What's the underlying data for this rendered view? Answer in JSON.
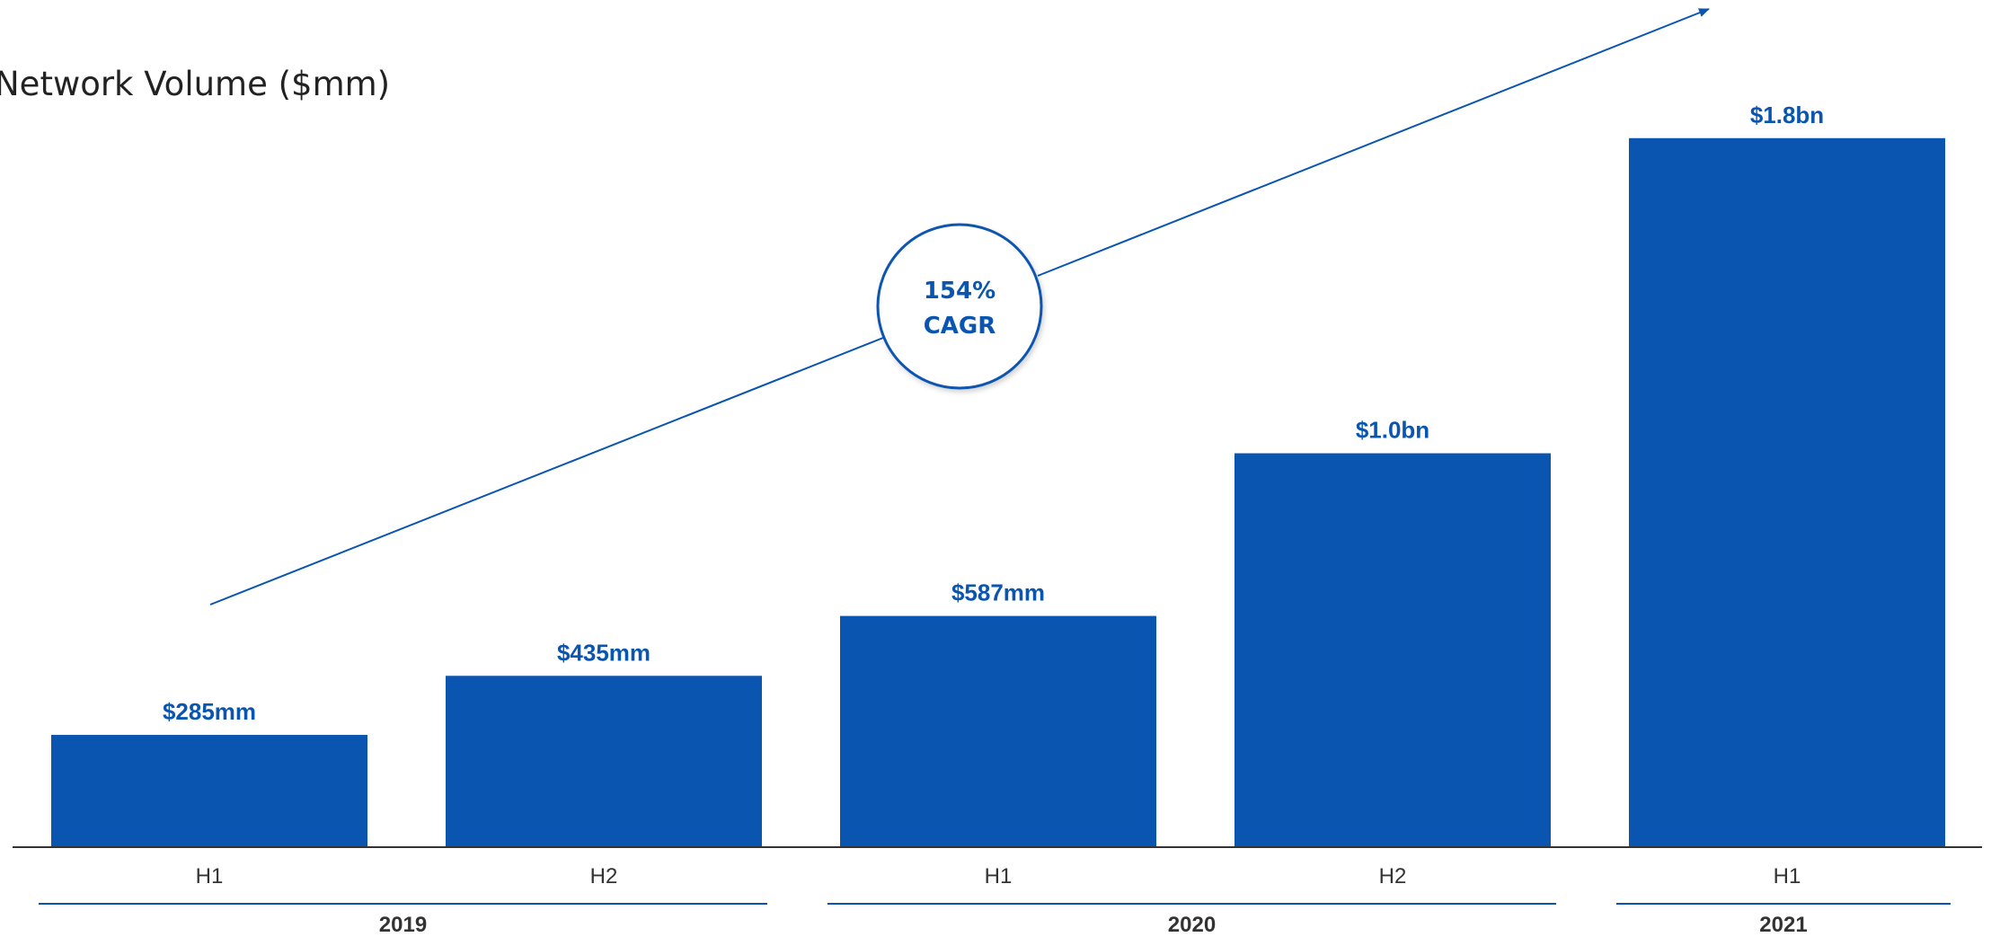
{
  "colors": {
    "bar": "#0A55B0",
    "label": "#0A55B0",
    "axis": "#333333",
    "group_line": "#0A55B0",
    "arrow": "#0A55B0"
  },
  "chart_data": {
    "type": "bar",
    "title": "Network Volume ($mm)",
    "xlabel": "",
    "ylabel": "",
    "ylim": [
      0,
      1950
    ],
    "grid": false,
    "legend": "none",
    "categories": [
      "H1",
      "H2",
      "H1",
      "H2",
      "H1"
    ],
    "values": [
      285,
      435,
      587,
      1000,
      1800
    ],
    "value_labels": [
      "$285mm",
      "$435mm",
      "$587mm",
      "$1.0bn",
      "$1.8bn"
    ],
    "groups": [
      {
        "label": "2019",
        "from": 0,
        "to": 1
      },
      {
        "label": "2020",
        "from": 2,
        "to": 3
      },
      {
        "label": "2021",
        "from": 4,
        "to": 4
      }
    ],
    "annotation": {
      "line1": "154%",
      "line2": "CAGR"
    }
  }
}
